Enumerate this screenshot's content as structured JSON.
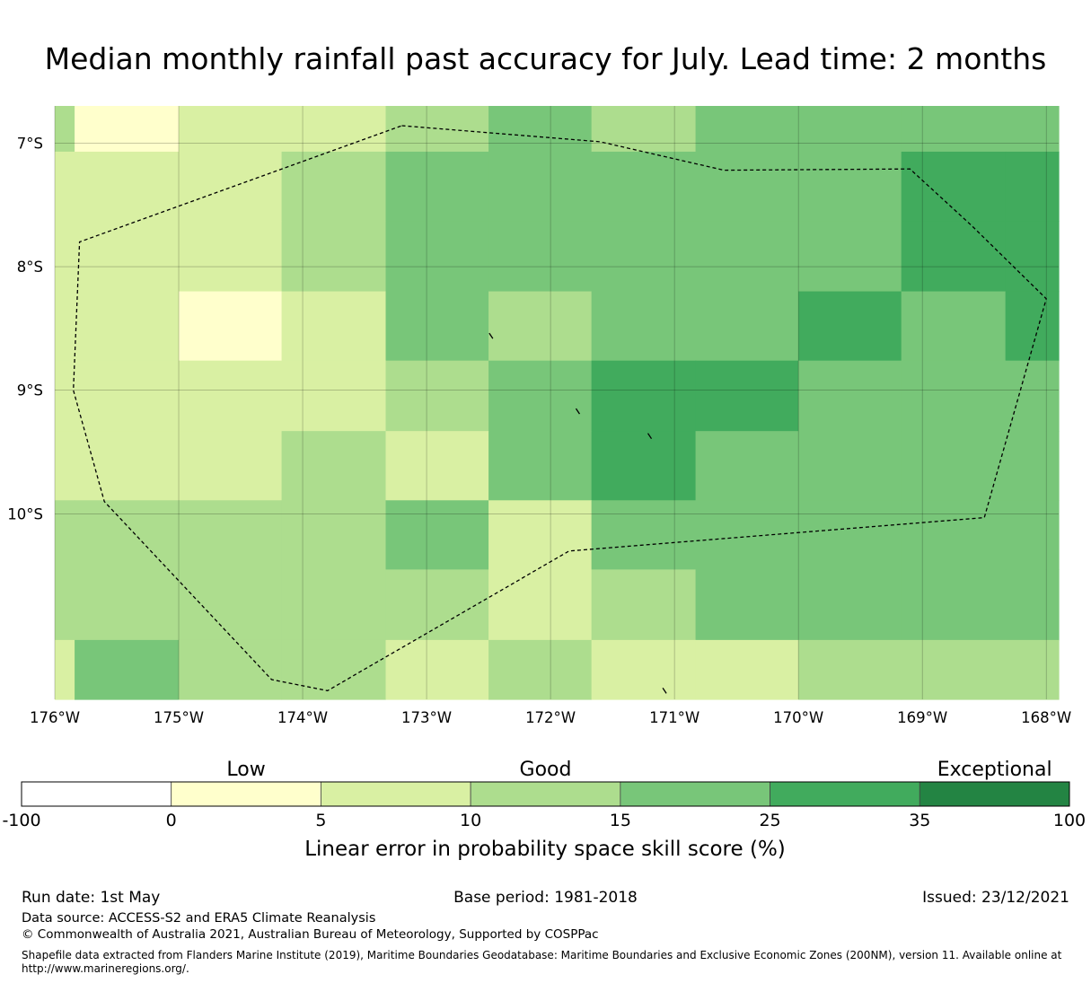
{
  "title": "Median monthly rainfall past accuracy for July. Lead time: 2 months",
  "map": {
    "lon_min": -176.0,
    "lon_max": -167.9,
    "lat_top": -6.7,
    "lat_bottom": -11.5,
    "lon_ticks": [
      {
        "lon": -176,
        "label": "176°W"
      },
      {
        "lon": -175,
        "label": "175°W"
      },
      {
        "lon": -174,
        "label": "174°W"
      },
      {
        "lon": -173,
        "label": "173°W"
      },
      {
        "lon": -172,
        "label": "172°W"
      },
      {
        "lon": -171,
        "label": "171°W"
      },
      {
        "lon": -170,
        "label": "170°W"
      },
      {
        "lon": -169,
        "label": "169°W"
      },
      {
        "lon": -168,
        "label": "168°W"
      }
    ],
    "lat_ticks": [
      {
        "lat": -7,
        "label": "7°S"
      },
      {
        "lat": -8,
        "label": "8°S"
      },
      {
        "lat": -9,
        "label": "9°S"
      },
      {
        "lat": -10,
        "label": "10°S"
      }
    ],
    "grid_lines": true,
    "cell_edges_lon": [
      -176.0,
      -175.84,
      -175.0,
      -174.17,
      -173.33,
      -172.5,
      -171.67,
      -170.83,
      -170.0,
      -169.17,
      -168.33,
      -167.9
    ],
    "cell_edges_lat": [
      -6.7,
      -7.07,
      -7.63,
      -8.2,
      -8.76,
      -9.33,
      -9.89,
      -10.45,
      -11.02,
      -11.5
    ],
    "cell_classes": [
      [
        3,
        1,
        2,
        2,
        3,
        4,
        3,
        4,
        4,
        4,
        4
      ],
      [
        2,
        2,
        2,
        3,
        4,
        4,
        4,
        4,
        4,
        5,
        5
      ],
      [
        2,
        2,
        2,
        3,
        4,
        4,
        4,
        4,
        4,
        5,
        5
      ],
      [
        2,
        2,
        1,
        2,
        4,
        3,
        4,
        4,
        5,
        4,
        5
      ],
      [
        2,
        2,
        2,
        2,
        3,
        4,
        5,
        5,
        4,
        4,
        4
      ],
      [
        2,
        2,
        2,
        3,
        2,
        4,
        5,
        4,
        4,
        4,
        4
      ],
      [
        3,
        3,
        3,
        3,
        4,
        2,
        4,
        4,
        4,
        4,
        4
      ],
      [
        3,
        3,
        3,
        3,
        3,
        2,
        3,
        4,
        4,
        4,
        4
      ],
      [
        2,
        4,
        3,
        3,
        2,
        3,
        2,
        2,
        3,
        3,
        3
      ]
    ],
    "boundary": [
      [
        -173.2,
        -6.86
      ],
      [
        -171.6,
        -6.99
      ],
      [
        -170.6,
        -7.22
      ],
      [
        -169.1,
        -7.21
      ],
      [
        -168.6,
        -7.67
      ],
      [
        -168.0,
        -8.26
      ],
      [
        -168.5,
        -10.03
      ],
      [
        -171.85,
        -10.3
      ],
      [
        -173.8,
        -11.43
      ],
      [
        -174.25,
        -11.34
      ],
      [
        -175.6,
        -9.9
      ],
      [
        -175.85,
        -9.0
      ],
      [
        -175.8,
        -7.8
      ],
      [
        -173.2,
        -6.86
      ]
    ],
    "islands": [
      {
        "lon": -172.48,
        "lat": -8.56
      },
      {
        "lon": -171.78,
        "lat": -9.17
      },
      {
        "lon": -171.2,
        "lat": -9.37
      },
      {
        "lon": -171.08,
        "lat": -11.43
      }
    ]
  },
  "legend": {
    "category_labels": [
      {
        "label": "Low",
        "class_index": 1
      },
      {
        "label": "Good",
        "class_index": 3
      },
      {
        "label": "Exceptional",
        "class_index": 6
      }
    ],
    "colors": [
      "#ffffff",
      "#ffffcc",
      "#d9f0a3",
      "#addd8e",
      "#78c679",
      "#41ab5d",
      "#238443"
    ],
    "tick_labels": [
      "-100",
      "0",
      "5",
      "10",
      "15",
      "25",
      "35",
      "100"
    ],
    "axis_label": "Linear error in probability space skill score (%)"
  },
  "footer": {
    "run_date": "Run date: 1st May",
    "base_period": "Base period: 1981-2018",
    "issued": "Issued: 23/12/2021",
    "data_source": "Data source: ACCESS-S2 and ERA5 Climate Reanalysis",
    "copyright": "© Commonwealth of Australia 2021, Australian Bureau of Meteorology, Supported by COSPPac",
    "shapefile_note": "Shapefile data extracted from Flanders Marine Institute (2019), Maritime Boundaries Geodatabase: Maritime Boundaries and Exclusive Economic Zones (200NM), version 11. Available online at http://www.marineregions.org/."
  }
}
